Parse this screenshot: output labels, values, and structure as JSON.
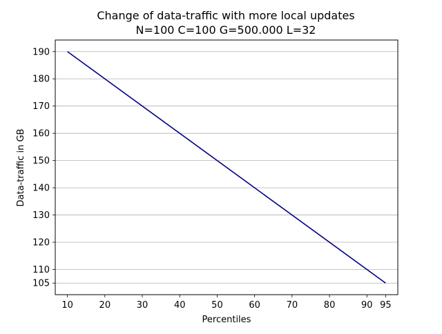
{
  "chart_data": {
    "type": "line",
    "title": "Change of data-traffic with more local updates",
    "subtitle": "N=100 C=100 G=500.000 L=32",
    "xlabel": "Percentiles",
    "ylabel": "Data-traffic in GB",
    "x_ticks": [
      10,
      20,
      30,
      40,
      50,
      60,
      70,
      80,
      90,
      95
    ],
    "y_ticks": [
      105,
      110,
      120,
      130,
      140,
      150,
      160,
      170,
      180,
      190
    ],
    "xlim": [
      6.75,
      98.25
    ],
    "ylim": [
      100.75,
      194.25
    ],
    "grid": "horizontal",
    "series": [
      {
        "color": "#000080",
        "x": [
          10,
          95
        ],
        "y": [
          190,
          105
        ]
      }
    ]
  }
}
